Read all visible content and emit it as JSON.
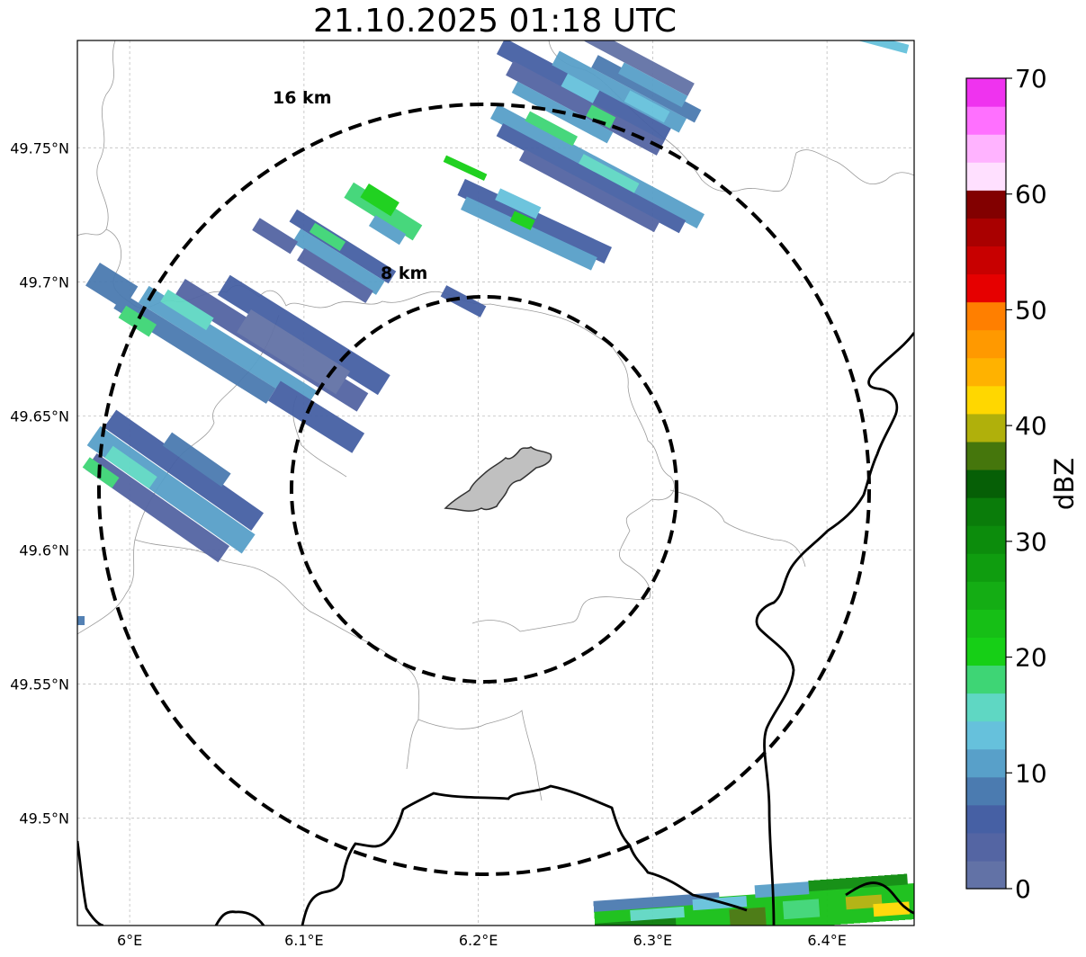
{
  "title": "21.10.2025 01:18 UTC",
  "map": {
    "lon_range": [
      5.97,
      6.45
    ],
    "lat_range": [
      49.46,
      49.79
    ],
    "x_ticks": [
      {
        "value": 6.0,
        "label": "6°E"
      },
      {
        "value": 6.1,
        "label": "6.1°E"
      },
      {
        "value": 6.2,
        "label": "6.2°E"
      },
      {
        "value": 6.3,
        "label": "6.3°E"
      },
      {
        "value": 6.4,
        "label": "6.4°E"
      }
    ],
    "y_ticks": [
      {
        "value": 49.5,
        "label": "49.5°N"
      },
      {
        "value": 49.55,
        "label": "49.55°N"
      },
      {
        "value": 49.6,
        "label": "49.6°N"
      },
      {
        "value": 49.65,
        "label": "49.65°N"
      },
      {
        "value": 49.7,
        "label": "49.7°N"
      },
      {
        "value": 49.75,
        "label": "49.75°N"
      }
    ],
    "gridlines": true,
    "center": {
      "lon": 6.203,
      "lat": 49.622
    },
    "range_rings": [
      {
        "radius_km": 8,
        "label": "8 km"
      },
      {
        "radius_km": 16,
        "label": "16 km"
      }
    ]
  },
  "colorbar": {
    "label": "dBZ",
    "min": 0,
    "max": 70,
    "ticks": [
      "0",
      "10",
      "20",
      "30",
      "40",
      "50",
      "60",
      "70"
    ],
    "colors": [
      "#6272a6",
      "#5465a3",
      "#4660a4",
      "#4b7bb0",
      "#58a0c9",
      "#66c1dc",
      "#5fd7c3",
      "#3ed575",
      "#16cf16",
      "#16bf16",
      "#14ad14",
      "#0f9d0f",
      "#0c8c0c",
      "#0a7c0a",
      "#065f06",
      "#45760c",
      "#b0b00b",
      "#ffd700",
      "#ffb200",
      "#ff9900",
      "#ff7f00",
      "#e60000",
      "#c80000",
      "#a90000",
      "#820000",
      "#ffe0ff",
      "#ffb3ff",
      "#ff70ff",
      "#ef33ef"
    ]
  }
}
